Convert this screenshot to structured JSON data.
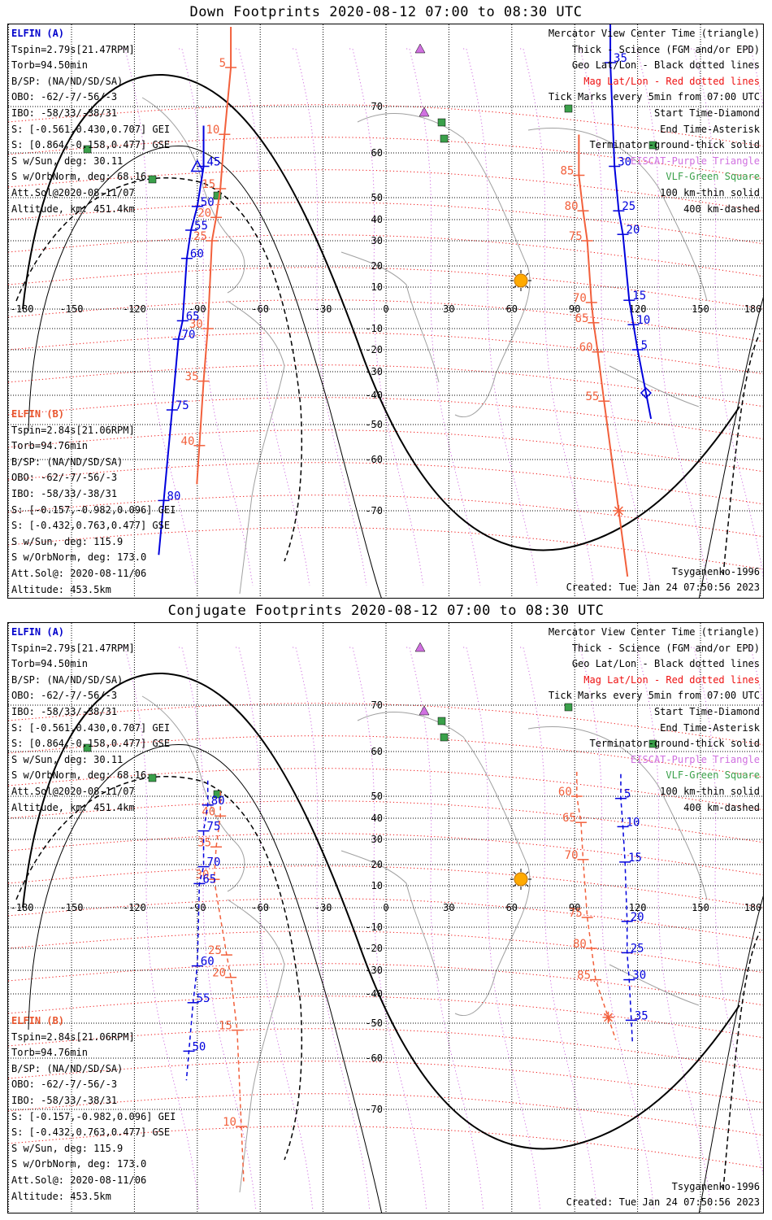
{
  "colors": {
    "blue": "#0000dd",
    "orange": "#f2603c",
    "mag": "#ee1111",
    "geo": "#000000",
    "vlf": "#3aa04a",
    "eiscat": "#d070e0",
    "sun": "#ffaa00",
    "coast": "#a0a0a0"
  },
  "grid": {
    "lon_labels": [
      "-180",
      "-150",
      "-120",
      "-90",
      "-60",
      "-30",
      "0",
      "30",
      "60",
      "90",
      "120",
      "150",
      "180"
    ],
    "lat_labels": [
      "70",
      "60",
      "50",
      "40",
      "30",
      "20",
      "10",
      "0",
      "-10",
      "-20",
      "-30",
      "-40",
      "-50",
      "-60",
      "-70"
    ]
  },
  "legend": [
    {
      "text": "Mercator View Center Time (triangle)",
      "color": "#000000"
    },
    {
      "text": "Thick - Science (FGM and/or EPD)",
      "color": "#000000"
    },
    {
      "text": "Geo Lat/Lon - Black dotted lines",
      "color": "#000000"
    },
    {
      "text": "Mag Lat/Lon - Red dotted lines",
      "color": "#ee1111"
    },
    {
      "text": "Tick Marks every 5min from 07:00 UTC",
      "color": "#000000"
    },
    {
      "text": "Start Time-Diamond",
      "color": "#000000"
    },
    {
      "text": "End Time-Asterisk",
      "color": "#000000"
    },
    {
      "text": "Terminator-ground-thick solid",
      "color": "#000000"
    },
    {
      "text": "EISCAT-Purple Triangle",
      "color": "#d070e0"
    },
    {
      "text": "VLF-Green Square",
      "color": "#3aa04a"
    },
    {
      "text": "100 km-thin solid",
      "color": "#000000"
    },
    {
      "text": "400 km-dashed",
      "color": "#000000"
    }
  ],
  "elfin_a": {
    "header": "ELFIN (A)",
    "lines": [
      "Tspin=2.79s[21.47RPM]",
      "Torb=94.50min",
      "B/SP: (NA/ND/SD/SA)",
      "OBO: -62/-7/-56/-3",
      "IBO: -58/33/-38/31",
      "S: [-0.561,0.430,0.707] GEI",
      "S: [0.864,-0.158,0.477] GSE",
      "S w/Sun, deg: 30.11",
      "S w/OrbNorm, deg: 68.16",
      "Att.Sol@2020-08-11/07",
      "Altitude, km: 451.4km"
    ]
  },
  "elfin_b": {
    "header": "ELFIN (B)",
    "lines": [
      "Tspin=2.84s[21.06RPM]",
      "Torb=94.76min",
      "B/SP: (NA/ND/SD/SA)",
      "OBO: -62/-7/-56/-3",
      "IBO: -58/33/-38/31",
      "S: [-0.157,-0.982,0.096] GEI",
      "S: [-0.432,0.763,0.477] GSE",
      "S w/Sun, deg: 115.9",
      "S w/OrbNorm, deg: 173.0",
      "Att.Sol@: 2020-08-11/06",
      "Altitude: 453.5km"
    ]
  },
  "footer": {
    "model": "Tsyganenko-1996",
    "created": "Created: Tue Jan 24 07:50:56 2023"
  },
  "panels": [
    {
      "title": "Down Footprints 2020-08-12 07:00 to 08:30 UTC",
      "a_west": {
        "dashed": false,
        "ticks": [
          [
            "45",
            -87,
            57
          ],
          [
            "50",
            -90,
            46
          ],
          [
            "55",
            -93,
            35
          ],
          [
            "60",
            -95,
            23
          ],
          [
            "65",
            -97,
            -6
          ],
          [
            "70",
            -99,
            -15
          ],
          [
            "75",
            -102,
            -45
          ],
          [
            "80",
            -106,
            -68
          ]
        ]
      },
      "b_west": {
        "dashed": false,
        "ticks": [
          [
            "5",
            -74,
            78
          ],
          [
            "10",
            -77,
            64
          ],
          [
            "15",
            -79,
            52
          ],
          [
            "20",
            -81,
            41
          ],
          [
            "25",
            -83,
            30
          ],
          [
            "30",
            -85,
            -10
          ],
          [
            "35",
            -87,
            -34
          ],
          [
            "40",
            -89,
            -56
          ]
        ]
      },
      "a_east": {
        "dashed": false,
        "ticks": [
          [
            "35",
            107,
            79
          ],
          [
            "30",
            109,
            57
          ],
          [
            "25",
            111,
            44
          ],
          [
            "20",
            113,
            33
          ],
          [
            "15",
            116,
            4
          ],
          [
            "10",
            118,
            -8
          ],
          [
            "5",
            120,
            -20
          ],
          [
            "start",
            124,
            -39
          ]
        ]
      },
      "b_east": {
        "dashed": false,
        "ticks": [
          [
            "85",
            92,
            55
          ],
          [
            "80",
            94,
            44
          ],
          [
            "75",
            96,
            30
          ],
          [
            "70",
            98,
            3
          ],
          [
            "65",
            99,
            -7
          ],
          [
            "60",
            101,
            -21
          ],
          [
            "55",
            104,
            -42
          ],
          [
            "end",
            111,
            -70
          ]
        ]
      }
    },
    {
      "title": "Conjugate Footprints 2020-08-12 07:00 to 08:30 UTC",
      "a_west": {
        "dashed": true,
        "ticks": [
          [
            "80",
            -85,
            46
          ],
          [
            "75",
            -87,
            34
          ],
          [
            "70",
            -87,
            19
          ],
          [
            "65",
            -89,
            11
          ],
          [
            "60",
            -90,
            -28
          ],
          [
            "55",
            -92,
            -43
          ],
          [
            "50",
            -94,
            -58
          ]
        ]
      },
      "b_west": {
        "dashed": true,
        "ticks": [
          [
            "40",
            -79,
            41
          ],
          [
            "35",
            -81,
            27
          ],
          [
            "30",
            -82,
            13
          ],
          [
            "25",
            -76,
            -23
          ],
          [
            "20",
            -74,
            -33
          ],
          [
            "15",
            -71,
            -52
          ],
          [
            "10",
            -69,
            -73
          ]
        ]
      },
      "a_east": {
        "dashed": true,
        "ticks": [
          [
            "5",
            112,
            49
          ],
          [
            "10",
            113,
            36
          ],
          [
            "15",
            114,
            21
          ],
          [
            "20",
            115,
            -7
          ],
          [
            "25",
            115,
            -22
          ],
          [
            "30",
            116,
            -34
          ],
          [
            "35",
            117,
            -49
          ]
        ]
      },
      "b_east": {
        "dashed": true,
        "ticks": [
          [
            "60",
            91,
            50
          ],
          [
            "65",
            93,
            38
          ],
          [
            "70",
            94,
            22
          ],
          [
            "75",
            96,
            -5
          ],
          [
            "80",
            98,
            -20
          ],
          [
            "85",
            100,
            -34
          ],
          [
            "end",
            106,
            -48
          ]
        ]
      }
    }
  ]
}
